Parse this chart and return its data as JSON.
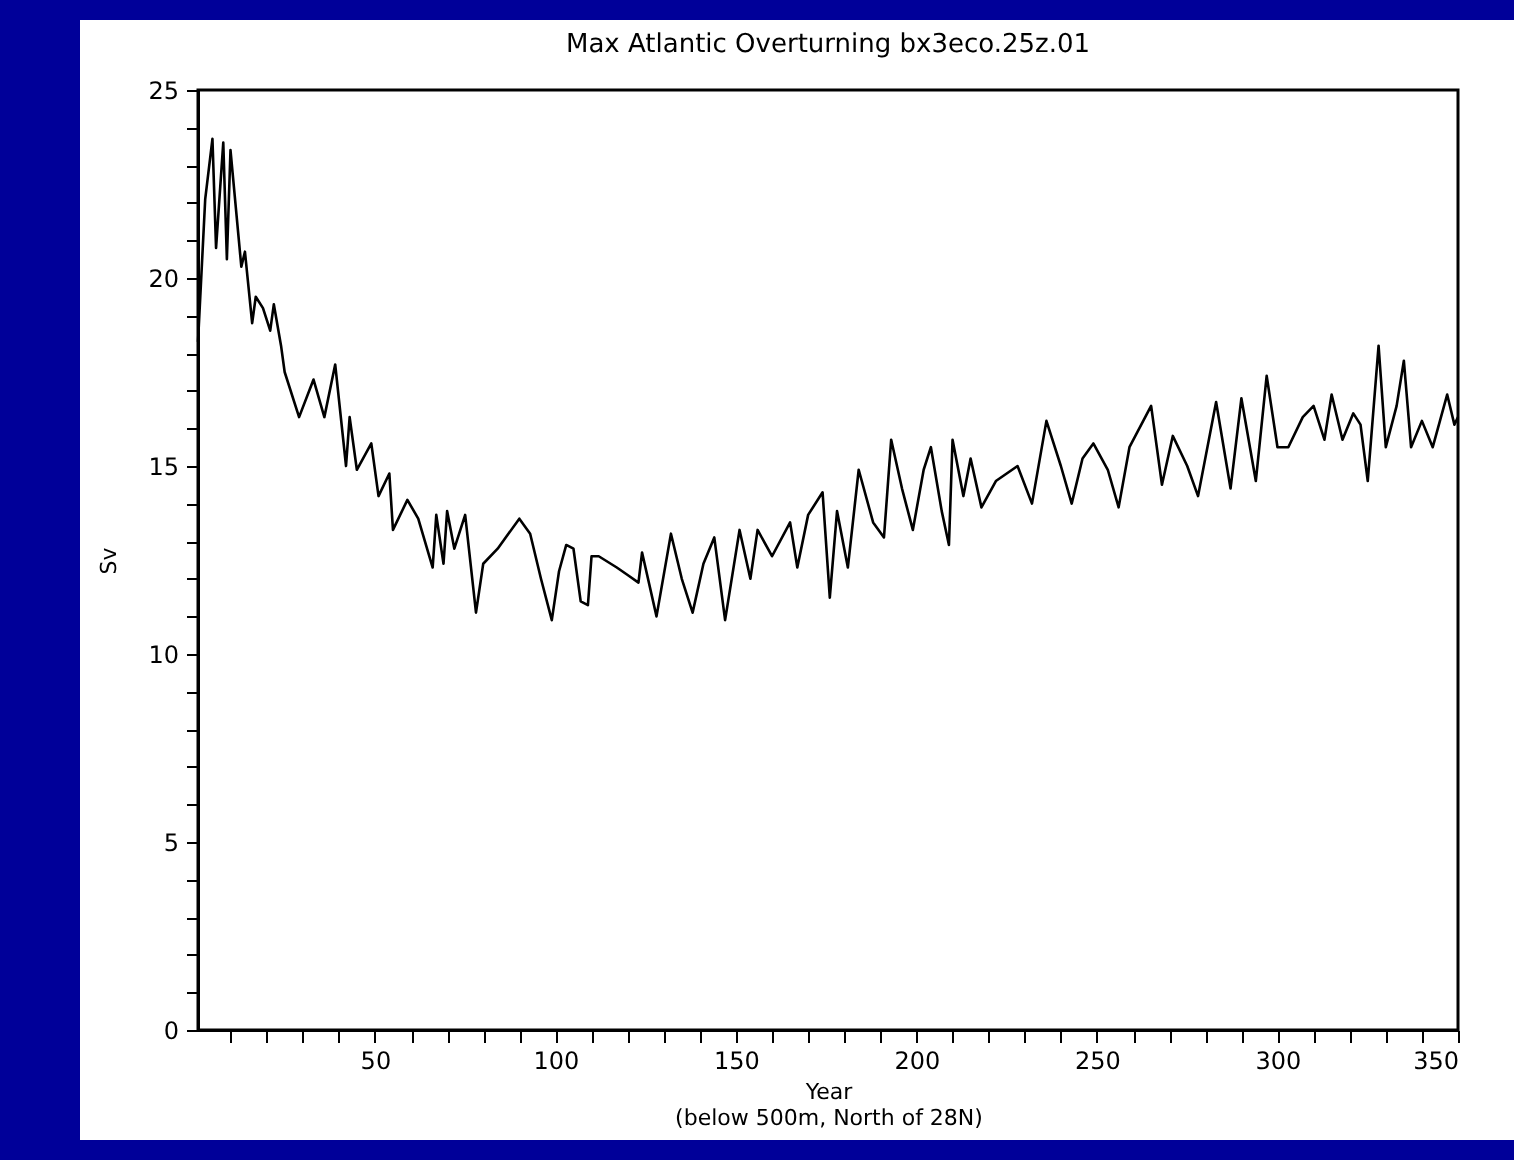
{
  "chart_data": {
    "type": "line",
    "title": "Max Atlantic Overturning bx3eco.25z.01",
    "xlabel": "Year\n(below 500m, North of 28N)",
    "ylabel": "Sv",
    "xlim": [
      1,
      350
    ],
    "ylim": [
      0,
      25
    ],
    "xticks": [
      {
        "value": 10,
        "label": null
      },
      {
        "value": 20,
        "label": null
      },
      {
        "value": 30,
        "label": null
      },
      {
        "value": 40,
        "label": null
      },
      50,
      {
        "value": 60,
        "label": null
      },
      {
        "value": 70,
        "label": null
      },
      {
        "value": 80,
        "label": null
      },
      {
        "value": 90,
        "label": null
      },
      100,
      {
        "value": 110,
        "label": null
      },
      {
        "value": 120,
        "label": null
      },
      {
        "value": 130,
        "label": null
      },
      {
        "value": 140,
        "label": null
      },
      150,
      {
        "value": 160,
        "label": null
      },
      {
        "value": 170,
        "label": null
      },
      {
        "value": 180,
        "label": null
      },
      {
        "value": 190,
        "label": null
      },
      200,
      {
        "value": 210,
        "label": null
      },
      {
        "value": 220,
        "label": null
      },
      {
        "value": 230,
        "label": null
      },
      {
        "value": 240,
        "label": null
      },
      250,
      {
        "value": 260,
        "label": null
      },
      {
        "value": 270,
        "label": null
      },
      {
        "value": 280,
        "label": null
      },
      {
        "value": 290,
        "label": null
      },
      300,
      {
        "value": 310,
        "label": null
      },
      {
        "value": 320,
        "label": null
      },
      {
        "value": 330,
        "label": null
      },
      {
        "value": 340,
        "label": null
      },
      350
    ],
    "yticks": [
      0,
      {
        "value": 1,
        "label": null
      },
      {
        "value": 2,
        "label": null
      },
      {
        "value": 3,
        "label": null
      },
      {
        "value": 4,
        "label": null
      },
      5,
      {
        "value": 6,
        "label": null
      },
      {
        "value": 7,
        "label": null
      },
      {
        "value": 8,
        "label": null
      },
      {
        "value": 9,
        "label": null
      },
      10,
      {
        "value": 11,
        "label": null
      },
      {
        "value": 12,
        "label": null
      },
      {
        "value": 13,
        "label": null
      },
      {
        "value": 14,
        "label": null
      },
      15,
      {
        "value": 16,
        "label": null
      },
      {
        "value": 17,
        "label": null
      },
      {
        "value": 18,
        "label": null
      },
      {
        "value": 19,
        "label": null
      },
      20,
      {
        "value": 21,
        "label": null
      },
      {
        "value": 22,
        "label": null
      },
      {
        "value": 23,
        "label": null
      },
      {
        "value": 24,
        "label": null
      },
      25
    ],
    "grid": false,
    "marker": "none",
    "line_style": "solid",
    "x": [
      1,
      3,
      5,
      6,
      8,
      9,
      10,
      13,
      14,
      16,
      17,
      19,
      21,
      22,
      24,
      25,
      29,
      33,
      36,
      39,
      42,
      43,
      45,
      49,
      51,
      54,
      55,
      59,
      62,
      66,
      67,
      69,
      70,
      72,
      75,
      78,
      80,
      84,
      90,
      93,
      96,
      99,
      101,
      103,
      105,
      107,
      109,
      110,
      112,
      117,
      120,
      123,
      124,
      128,
      132,
      135,
      138,
      141,
      144,
      147,
      151,
      154,
      156,
      160,
      165,
      167,
      170,
      174,
      176,
      178,
      181,
      184,
      188,
      191,
      193,
      196,
      199,
      202,
      204,
      207,
      209,
      210,
      213,
      215,
      218,
      222,
      228,
      232,
      236,
      240,
      243,
      246,
      249,
      253,
      256,
      259,
      265,
      268,
      271,
      275,
      278,
      283,
      287,
      290,
      294,
      297,
      300,
      303,
      307,
      310,
      313,
      315,
      318,
      321,
      323,
      325,
      328,
      330,
      333,
      335,
      337,
      340,
      343,
      345,
      347,
      349,
      350
    ],
    "series": [
      {
        "color": "#000000",
        "values": [
          18.3,
          22.1,
          23.7,
          20.8,
          23.6,
          20.5,
          23.4,
          20.3,
          20.7,
          18.8,
          19.5,
          19.2,
          18.6,
          19.3,
          18.2,
          17.5,
          16.3,
          17.3,
          16.3,
          17.7,
          15.0,
          16.3,
          14.9,
          15.6,
          14.2,
          14.8,
          13.3,
          14.1,
          13.6,
          12.3,
          13.7,
          12.4,
          13.8,
          12.8,
          13.7,
          11.1,
          12.4,
          12.8,
          13.6,
          13.2,
          12.0,
          10.9,
          12.2,
          12.9,
          12.8,
          11.4,
          11.3,
          12.6,
          12.6,
          12.3,
          12.1,
          11.9,
          12.7,
          11.0,
          13.2,
          12.0,
          11.1,
          12.4,
          13.1,
          10.9,
          13.3,
          12.0,
          13.3,
          12.6,
          13.5,
          12.3,
          13.7,
          14.3,
          11.5,
          13.8,
          12.3,
          14.9,
          13.5,
          13.1,
          15.7,
          14.4,
          13.3,
          14.9,
          15.5,
          13.8,
          12.9,
          15.7,
          14.2,
          15.2,
          13.9,
          14.6,
          15.0,
          14.0,
          16.2,
          15.0,
          14.0,
          15.2,
          15.6,
          14.9,
          13.9,
          15.5,
          16.6,
          14.5,
          15.8,
          15.0,
          14.2,
          16.7,
          14.4,
          16.8,
          14.6,
          17.4,
          15.5,
          15.5,
          16.3,
          16.6,
          15.7,
          16.9,
          15.7,
          16.4,
          16.1,
          14.6,
          18.2,
          15.5,
          16.6,
          17.8,
          15.5,
          16.2,
          15.5,
          16.2,
          16.9,
          16.1,
          16.3
        ]
      }
    ]
  }
}
